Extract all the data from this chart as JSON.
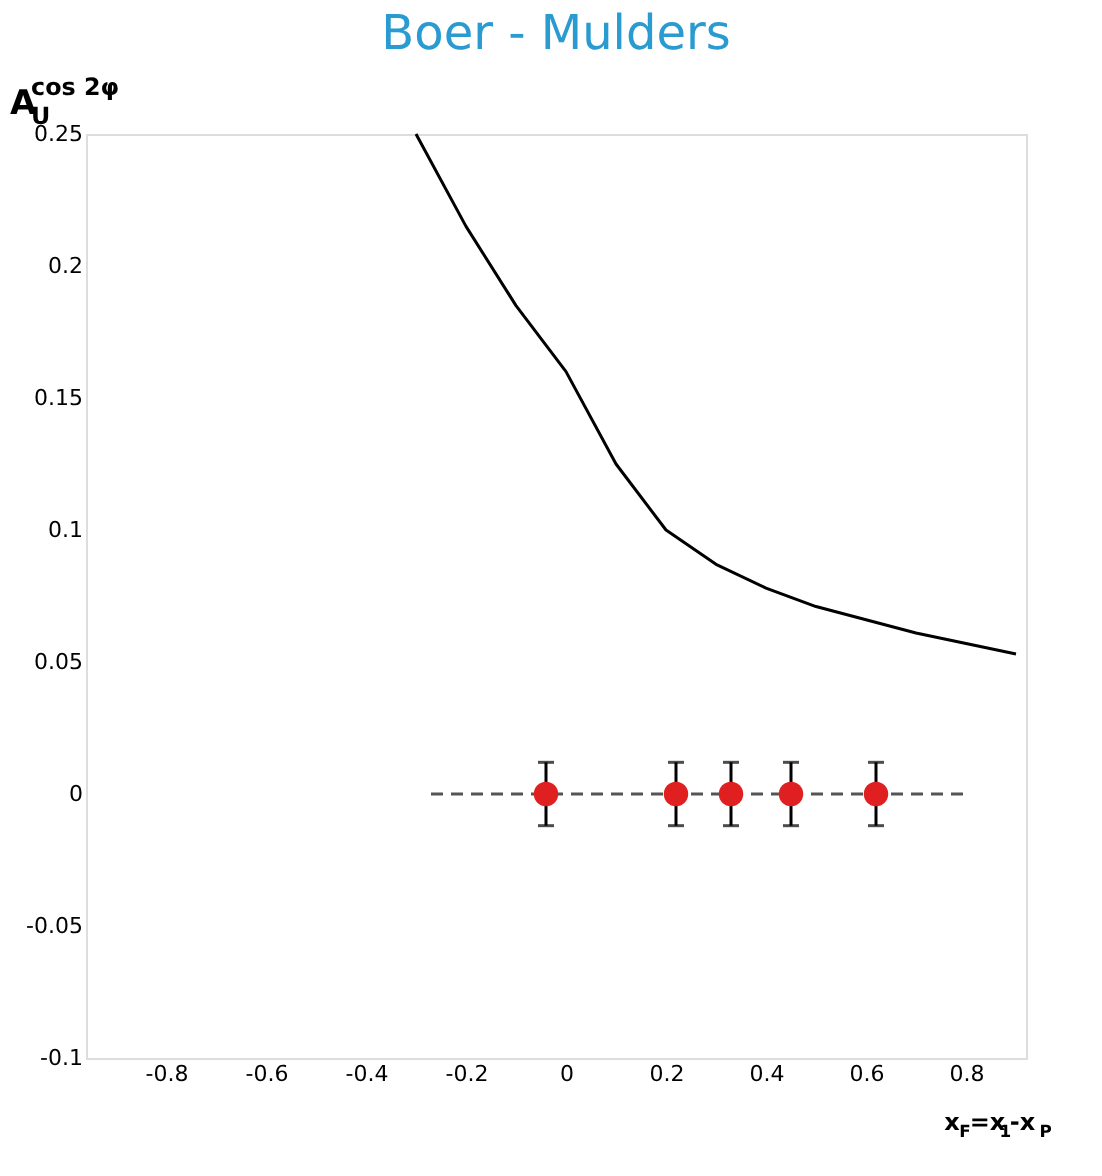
{
  "chart_data": {
    "type": "scatter",
    "title": "Boer - Mulders",
    "ylabel": "A$^{cos 2φ}$$_{U}$",
    "xlabel": "x$_{F}$=x$_{1}$-x$_{P}$",
    "xlim": [
      -0.96,
      0.92
    ],
    "ylim": [
      -0.1,
      0.25
    ],
    "xticks": [
      {
        "value": -0.8,
        "label": "-0.8"
      },
      {
        "value": -0.6,
        "label": "-0.6"
      },
      {
        "value": -0.4,
        "label": "-0.4"
      },
      {
        "value": -0.2,
        "label": "-0.2"
      },
      0,
      0.2,
      0.4,
      0.6,
      0.8
    ],
    "yticks": [
      -0.1,
      -0.05,
      0,
      0.05,
      0.1,
      0.15,
      0.2,
      0.25
    ],
    "grid": false,
    "series": [
      {
        "type": "line",
        "color": "#000000",
        "line_style": "solid",
        "marker": "none",
        "x": [
          -0.3,
          -0.2,
          -0.1,
          0,
          0.1,
          0.2,
          0.3,
          0.4,
          0.5,
          0.6,
          0.7,
          0.8,
          0.9
        ],
        "values": [
          0.25,
          0.215,
          0.185,
          0.16,
          0.125,
          0.1,
          0.087,
          0.078,
          0.071,
          0.066,
          0.061,
          0.057,
          0.053
        ]
      },
      {
        "type": "line",
        "color": "#555555",
        "line_style": "dashed",
        "marker": "none",
        "x": [
          -0.27,
          0.8
        ],
        "values": [
          0,
          0
        ]
      },
      {
        "color": "#e02020",
        "marker": "circle",
        "x": [
          -0.04,
          0.22,
          0.33,
          0.45,
          0.62
        ],
        "values": [
          0,
          0,
          0,
          0,
          0
        ],
        "errors": [
          0.012,
          0.012,
          0.012,
          0.012,
          0.012
        ]
      }
    ]
  }
}
